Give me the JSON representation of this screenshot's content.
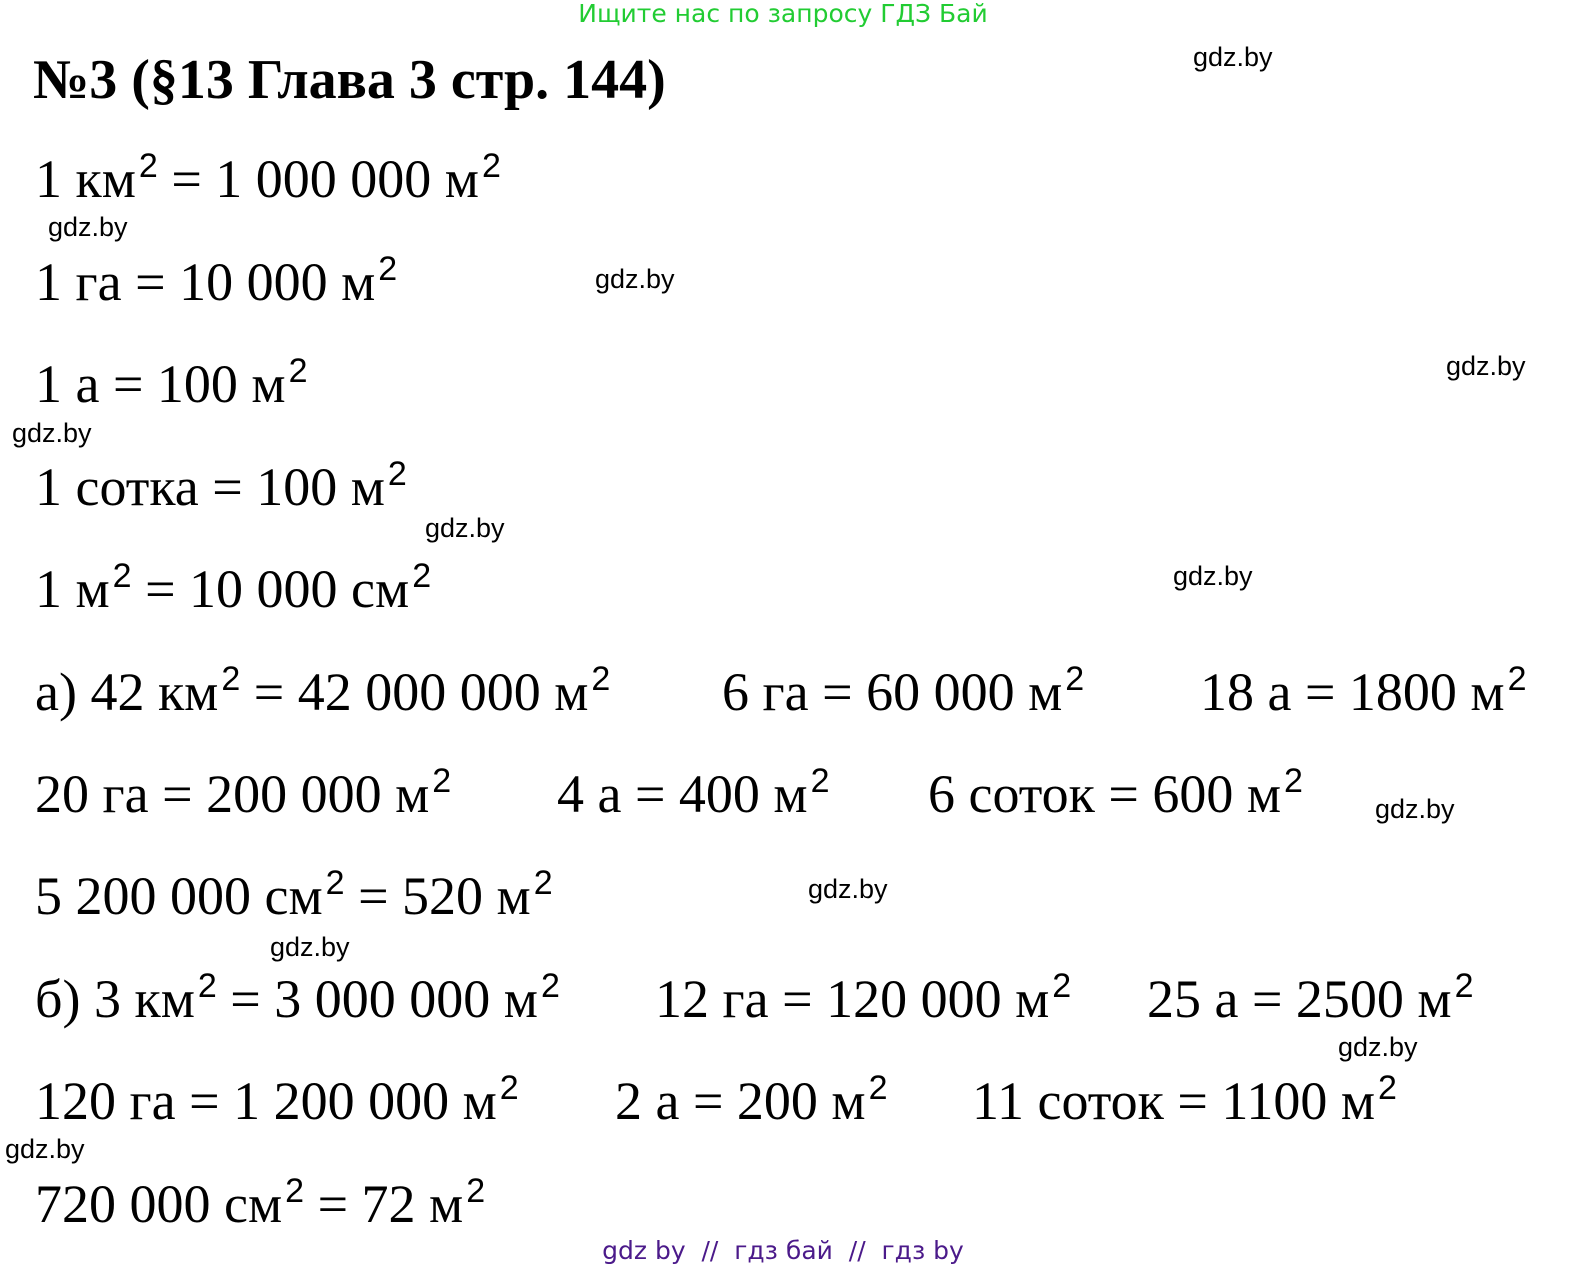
{
  "banner": "Ищите нас по запросу ГДЗ Бай",
  "title": "№3 (§13 Глава 3 стр. 144)",
  "equations": [
    "1 км² = 1 000 000 м²",
    "1 га = 10 000 м²",
    "1 а = 100 м²",
    "1 сотка = 100 м²",
    "1 м² = 10 000 см²",
    "а) 42 км² = 42 000 000 м²",
    "6 га = 60 000 м²",
    "18 а = 1800 м²",
    "20 га = 200 000 м²",
    "4 а = 400 м²",
    "6 соток = 600 м²",
    "5 200 000 см² = 520 м²",
    "б) 3 км² = 3 000 000 м²",
    "12 га = 120 000 м²",
    "25 а = 2500 м²",
    "120 га = 1 200 000 м²",
    "2 а = 200 м²",
    "11 соток = 1100 м²",
    "720 000 см² = 72 м²"
  ],
  "watermark": "gdz.by",
  "footer": "gdz by  //  гдз бай  //  гдз by",
  "colors": {
    "banner": "#22cc33",
    "footer": "#4b1a8a"
  }
}
